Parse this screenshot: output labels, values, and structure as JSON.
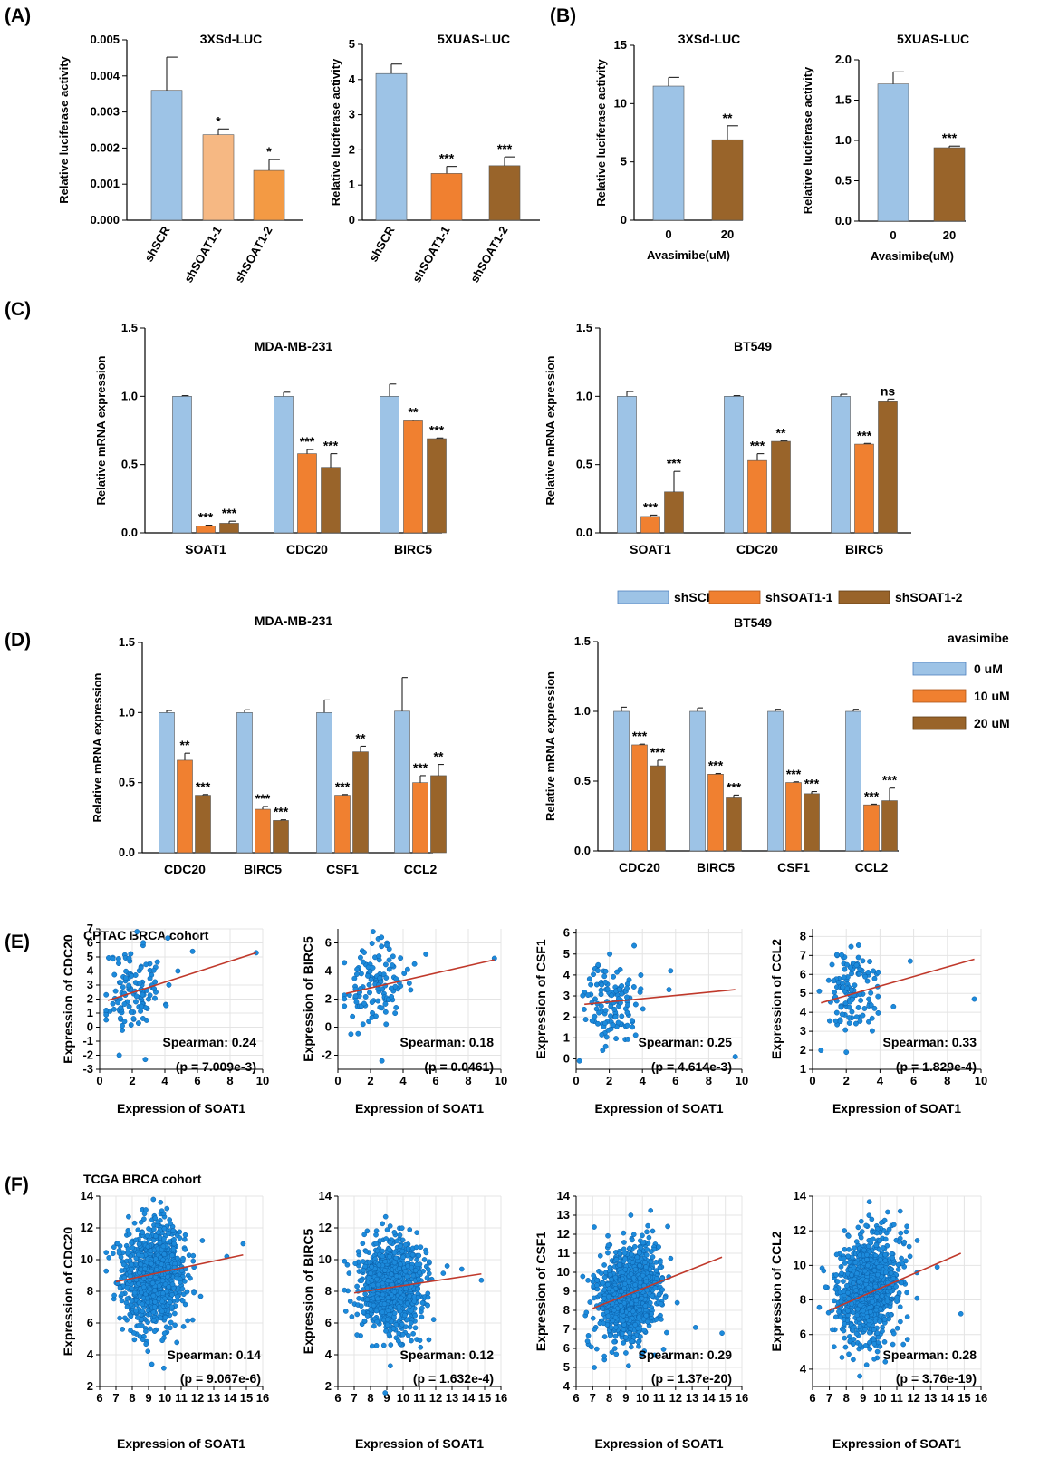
{
  "colors": {
    "blue": "#9dc3e6",
    "blue_edge": "#4f81bd",
    "orange": "#f08030",
    "orange_light": "#f6b883",
    "orange_mid": "#f39a44",
    "brown": "#99642a",
    "dot": "#1c8adb",
    "dot_edge": "#0a5ea8",
    "line": "#c0392b",
    "grid": "#e4e4e4"
  },
  "panel_labels": [
    "(A)",
    "(B)",
    "(C)",
    "(D)",
    "(E)",
    "(F)"
  ],
  "legend_C": {
    "entries": [
      "shSCR",
      "shSOAT1-1",
      "shSOAT1-2"
    ]
  },
  "legend_D": {
    "title": "avasimibe",
    "entries": [
      "0 uM",
      "10 uM",
      "20 uM"
    ]
  },
  "cohorts": {
    "E": "CPTAC BRCA cohort",
    "F": "TCGA BRCA cohort"
  },
  "chart_data": [
    {
      "id": "A1",
      "type": "bar",
      "title": "3XSd-LUC",
      "ylabel": "Relative luciferase activity",
      "xlabel": "",
      "ylim": [
        0,
        0.005
      ],
      "yticks": [
        "0.000",
        "0.001",
        "0.002",
        "0.003",
        "0.004",
        "0.005"
      ],
      "categories": [
        "shSCR",
        "shSOAT1-1",
        "shSOAT1-2"
      ],
      "values": [
        0.0036,
        0.00237,
        0.00138
      ],
      "errors": [
        0.00092,
        0.00016,
        0.0003
      ],
      "significance": [
        "",
        "*",
        "*"
      ]
    },
    {
      "id": "A2",
      "type": "bar",
      "title": "5XUAS-LUC",
      "ylabel": "Relative luciferase activity",
      "xlabel": "",
      "ylim": [
        0,
        5
      ],
      "yticks": [
        "0",
        "1",
        "2",
        "3",
        "4",
        "5"
      ],
      "categories": [
        "shSCR",
        "shSOAT1-1",
        "shSOAT1-2"
      ],
      "values": [
        4.17,
        1.33,
        1.55
      ],
      "errors": [
        0.27,
        0.2,
        0.25
      ],
      "significance": [
        "",
        "***",
        "***"
      ]
    },
    {
      "id": "B1",
      "type": "bar",
      "title": "3XSd-LUC",
      "ylabel": "Relative luciferase activity",
      "xlabel": "Avasimibe(uM)",
      "ylim": [
        0,
        15
      ],
      "yticks": [
        "0",
        "5",
        "10",
        "15"
      ],
      "categories": [
        "0",
        "20"
      ],
      "values": [
        11.5,
        6.9
      ],
      "errors": [
        0.75,
        1.2
      ],
      "significance": [
        "",
        "**"
      ]
    },
    {
      "id": "B2",
      "type": "bar",
      "title": "5XUAS-LUC",
      "ylabel": "Relative luciferase activity",
      "xlabel": "Avasimibe(uM)",
      "ylim": [
        0,
        2.0
      ],
      "yticks": [
        "0.0",
        "0.5",
        "1.0",
        "1.5",
        "2.0"
      ],
      "categories": [
        "0",
        "20"
      ],
      "values": [
        1.7,
        0.91
      ],
      "errors": [
        0.15,
        0.02
      ],
      "significance": [
        "",
        "***"
      ]
    },
    {
      "id": "C1",
      "type": "bar",
      "title": "MDA-MB-231",
      "ylabel": "Relative mRNA expression",
      "xlabel": "",
      "ylim": [
        0,
        1.5
      ],
      "yticks": [
        "0.0",
        "0.5",
        "1.0",
        "1.5"
      ],
      "categories": [
        "SOAT1",
        "CDC20",
        "BIRC5"
      ],
      "series": [
        {
          "name": "shSCR",
          "values": [
            1.0,
            1.0,
            1.0
          ],
          "errors": [
            0.005,
            0.03,
            0.09
          ]
        },
        {
          "name": "shSOAT1-1",
          "values": [
            0.05,
            0.58,
            0.82
          ],
          "errors": [
            0.006,
            0.03,
            0.006
          ]
        },
        {
          "name": "shSOAT1-2",
          "values": [
            0.07,
            0.48,
            0.69
          ],
          "errors": [
            0.015,
            0.1,
            0.005
          ]
        }
      ],
      "significance": [
        [
          "",
          "***",
          "***"
        ],
        [
          "",
          "***",
          "***"
        ],
        [
          "",
          "**",
          "***"
        ]
      ]
    },
    {
      "id": "C2",
      "type": "bar",
      "title": "BT549",
      "ylabel": "Relative mRNA expression",
      "xlabel": "",
      "ylim": [
        0,
        1.5
      ],
      "yticks": [
        "0.0",
        "0.5",
        "1.0",
        "1.5"
      ],
      "categories": [
        "SOAT1",
        "CDC20",
        "BIRC5"
      ],
      "series": [
        {
          "name": "shSCR",
          "values": [
            1.0,
            1.0,
            1.0
          ],
          "errors": [
            0.035,
            0.005,
            0.015
          ]
        },
        {
          "name": "shSOAT1-1",
          "values": [
            0.12,
            0.53,
            0.65
          ],
          "errors": [
            0.01,
            0.05,
            0.005
          ]
        },
        {
          "name": "shSOAT1-2",
          "values": [
            0.3,
            0.67,
            0.96
          ],
          "errors": [
            0.15,
            0.005,
            0.02
          ]
        }
      ],
      "significance": [
        [
          "",
          "***",
          "***"
        ],
        [
          "",
          "***",
          "**"
        ],
        [
          "",
          "***",
          "ns"
        ]
      ]
    },
    {
      "id": "D1",
      "type": "bar",
      "title": "MDA-MB-231",
      "ylabel": "Relative mRNA expression",
      "xlabel": "",
      "ylim": [
        0,
        1.5
      ],
      "yticks": [
        "0.0",
        "0.5",
        "1.0",
        "1.5"
      ],
      "categories": [
        "CDC20",
        "BIRC5",
        "CSF1",
        "CCL2"
      ],
      "series": [
        {
          "name": "0 uM",
          "values": [
            1.0,
            1.0,
            1.0,
            1.01
          ],
          "errors": [
            0.015,
            0.02,
            0.09,
            0.24
          ]
        },
        {
          "name": "10 uM",
          "values": [
            0.66,
            0.31,
            0.41,
            0.5
          ],
          "errors": [
            0.05,
            0.02,
            0.005,
            0.05
          ]
        },
        {
          "name": "20 uM",
          "values": [
            0.41,
            0.23,
            0.72,
            0.55
          ],
          "errors": [
            0.005,
            0.005,
            0.04,
            0.08
          ]
        }
      ],
      "significance": [
        [
          "",
          "**",
          "***"
        ],
        [
          "",
          "***",
          "***"
        ],
        [
          "",
          "***",
          "**"
        ],
        [
          "",
          "***",
          "**"
        ]
      ]
    },
    {
      "id": "D2",
      "type": "bar",
      "title": "BT549",
      "ylabel": "Relative mRNA expression",
      "xlabel": "",
      "ylim": [
        0,
        1.5
      ],
      "yticks": [
        "0.0",
        "0.5",
        "1.0",
        "1.5"
      ],
      "categories": [
        "CDC20",
        "BIRC5",
        "CSF1",
        "CCL2"
      ],
      "series": [
        {
          "name": "0 uM",
          "values": [
            1.0,
            1.0,
            1.0,
            1.0
          ],
          "errors": [
            0.03,
            0.025,
            0.015,
            0.015
          ]
        },
        {
          "name": "10 uM",
          "values": [
            0.76,
            0.55,
            0.49,
            0.33
          ],
          "errors": [
            0.005,
            0.005,
            0.005,
            0.005
          ]
        },
        {
          "name": "20 uM",
          "values": [
            0.61,
            0.38,
            0.41,
            0.36
          ],
          "errors": [
            0.04,
            0.02,
            0.015,
            0.09
          ]
        }
      ],
      "significance": [
        [
          "",
          "***",
          "***"
        ],
        [
          "",
          "***",
          "***"
        ],
        [
          "",
          "***",
          "***"
        ],
        [
          "",
          "***",
          "***"
        ]
      ]
    },
    {
      "id": "E1",
      "type": "scatter",
      "xlabel": "Expression of SOAT1",
      "ylabel": "Expression of CDC20",
      "xlim": [
        0,
        10
      ],
      "ylim": [
        -3,
        7
      ],
      "xticks": [
        0,
        2,
        4,
        6,
        8,
        10
      ],
      "yticks": [
        -3,
        -2,
        -1,
        0,
        1,
        2,
        3,
        4,
        5,
        6,
        7
      ],
      "n": 120,
      "seed": 11,
      "cx": 2.1,
      "sx": 0.9,
      "cy": 2.7,
      "sy": 1.6,
      "fit": [
        [
          0.5,
          1.9
        ],
        [
          9.6,
          5.3
        ]
      ],
      "outliers": [
        [
          9.6,
          5.3
        ],
        [
          5.7,
          5.4
        ],
        [
          4.8,
          4.0
        ],
        [
          1.2,
          -2.0
        ],
        [
          2.8,
          -2.3
        ]
      ],
      "stat": "Spearman: 0.24",
      "pval": "(p = 7.009e-3)"
    },
    {
      "id": "E2",
      "type": "scatter",
      "xlabel": "",
      "ylabel": "Expression of BIRC5",
      "xlim": [
        0,
        10
      ],
      "ylim": [
        -3,
        7
      ],
      "xticks": [
        0,
        2,
        4,
        6,
        8,
        10
      ],
      "yticks": [
        -2,
        0,
        2,
        4,
        6
      ],
      "n": 120,
      "seed": 23,
      "cx": 2.2,
      "sx": 0.9,
      "cy": 3.0,
      "sy": 1.3,
      "fit": [
        [
          0.5,
          2.4
        ],
        [
          9.6,
          4.8
        ]
      ],
      "outliers": [
        [
          9.6,
          4.9
        ],
        [
          5.4,
          5.2
        ],
        [
          2.7,
          -2.4
        ],
        [
          4.7,
          4.5
        ],
        [
          0.8,
          -0.5
        ]
      ],
      "stat": "Spearman: 0.18",
      "pval": "(p = 0.0461)"
    },
    {
      "id": "E3",
      "type": "scatter",
      "xlabel": "Expression of SOAT1",
      "ylabel": "Expression of CSF1",
      "xlim": [
        0,
        10
      ],
      "ylim": [
        -0.5,
        6.2
      ],
      "xticks": [
        0,
        2,
        4,
        6,
        8,
        10
      ],
      "yticks": [
        0,
        1,
        2,
        3,
        4,
        5,
        6
      ],
      "n": 120,
      "seed": 37,
      "cx": 2.2,
      "sx": 0.8,
      "cy": 2.7,
      "sy": 0.95,
      "fit": [
        [
          0.5,
          2.6
        ],
        [
          9.6,
          3.3
        ]
      ],
      "outliers": [
        [
          9.6,
          0.1
        ],
        [
          5.7,
          4.2
        ],
        [
          0.2,
          -0.1
        ],
        [
          3.5,
          5.4
        ],
        [
          5.6,
          3.3
        ]
      ],
      "stat": "Spearman: 0.25",
      "pval": "(p = 4.614e-3)"
    },
    {
      "id": "E4",
      "type": "scatter",
      "xlabel": "Expression of SOAT1",
      "ylabel": "Expression of CCL2",
      "xlim": [
        0,
        10
      ],
      "ylim": [
        1,
        8.4
      ],
      "xticks": [
        0,
        2,
        4,
        6,
        8,
        10
      ],
      "yticks": [
        1,
        2,
        3,
        4,
        5,
        6,
        7,
        8
      ],
      "n": 120,
      "seed": 51,
      "cx": 2.3,
      "sx": 0.8,
      "cy": 5.1,
      "sy": 1.1,
      "fit": [
        [
          0.5,
          4.5
        ],
        [
          9.6,
          6.8
        ]
      ],
      "outliers": [
        [
          9.6,
          4.7
        ],
        [
          5.8,
          6.7
        ],
        [
          2.0,
          1.9
        ],
        [
          0.5,
          2.0
        ],
        [
          4.8,
          4.3
        ]
      ],
      "stat": "Spearman: 0.33",
      "pval": "(p = 1.829e-4)"
    },
    {
      "id": "F1",
      "type": "scatter",
      "xlabel": "Expression of SOAT1",
      "ylabel": "Expression of CDC20",
      "xlim": [
        6,
        16
      ],
      "ylim": [
        2,
        14
      ],
      "xticks": [
        6,
        7,
        8,
        9,
        10,
        11,
        12,
        13,
        14,
        15,
        16
      ],
      "yticks": [
        2,
        4,
        6,
        8,
        10,
        12,
        14
      ],
      "n": 1000,
      "seed": 61,
      "cx": 9.3,
      "sx": 0.95,
      "cy": 9.0,
      "sy": 1.6,
      "fit": [
        [
          7.0,
          8.6
        ],
        [
          14.8,
          10.3
        ]
      ],
      "outliers": [
        [
          14.8,
          11.0
        ],
        [
          12.3,
          11.2
        ],
        [
          9.2,
          3.4
        ],
        [
          13.8,
          10.2
        ]
      ],
      "stat": "Spearman: 0.14",
      "pval": "(p = 9.067e-6)"
    },
    {
      "id": "F2",
      "type": "scatter",
      "xlabel": "Expression of SOAT1",
      "ylabel": "Expression of BIRC5",
      "xlim": [
        6,
        16
      ],
      "ylim": [
        2,
        14
      ],
      "xticks": [
        6,
        7,
        8,
        9,
        10,
        11,
        12,
        13,
        14,
        15,
        16
      ],
      "yticks": [
        2,
        4,
        6,
        8,
        10,
        12,
        14
      ],
      "n": 1000,
      "seed": 73,
      "cx": 9.3,
      "sx": 0.95,
      "cy": 8.3,
      "sy": 1.45,
      "fit": [
        [
          7.0,
          7.9
        ],
        [
          14.8,
          9.1
        ]
      ],
      "outliers": [
        [
          14.8,
          8.7
        ],
        [
          12.7,
          9.6
        ],
        [
          8.9,
          1.6
        ],
        [
          13.6,
          9.4
        ]
      ],
      "stat": "Spearman: 0.12",
      "pval": "(p = 1.632e-4)"
    },
    {
      "id": "F3",
      "type": "scatter",
      "xlabel": "Expression of SOAT1",
      "ylabel": "Expression of CSF1",
      "xlim": [
        6,
        16
      ],
      "ylim": [
        4,
        14
      ],
      "xticks": [
        6,
        7,
        8,
        9,
        10,
        11,
        12,
        13,
        14,
        15,
        16
      ],
      "yticks": [
        4,
        5,
        6,
        7,
        8,
        9,
        10,
        11,
        12,
        13,
        14
      ],
      "n": 1000,
      "seed": 83,
      "cx": 9.2,
      "sx": 0.95,
      "cy": 8.9,
      "sy": 1.2,
      "fit": [
        [
          7.0,
          8.1
        ],
        [
          14.8,
          10.8
        ]
      ],
      "outliers": [
        [
          14.8,
          6.8
        ],
        [
          13.2,
          7.1
        ],
        [
          7.1,
          5.0
        ],
        [
          9.3,
          13.0
        ],
        [
          12.1,
          8.4
        ]
      ],
      "stat": "Spearman: 0.29",
      "pval": "(p = 1.37e-20)"
    },
    {
      "id": "F4",
      "type": "scatter",
      "xlabel": "Expression of SOAT1",
      "ylabel": "Expression of CCL2",
      "xlim": [
        6,
        16
      ],
      "ylim": [
        3,
        14
      ],
      "xticks": [
        6,
        7,
        8,
        9,
        10,
        11,
        12,
        13,
        14,
        15,
        16
      ],
      "yticks": [
        4,
        6,
        8,
        10,
        12,
        14
      ],
      "n": 1000,
      "seed": 97,
      "cx": 9.3,
      "sx": 0.95,
      "cy": 8.7,
      "sy": 1.5,
      "fit": [
        [
          7.0,
          7.4
        ],
        [
          14.8,
          10.7
        ]
      ],
      "outliers": [
        [
          14.8,
          7.2
        ],
        [
          12.2,
          8.1
        ],
        [
          8.8,
          3.6
        ],
        [
          13.4,
          9.9
        ]
      ],
      "stat": "Spearman: 0.28",
      "pval": "(p = 3.76e-19)"
    }
  ]
}
